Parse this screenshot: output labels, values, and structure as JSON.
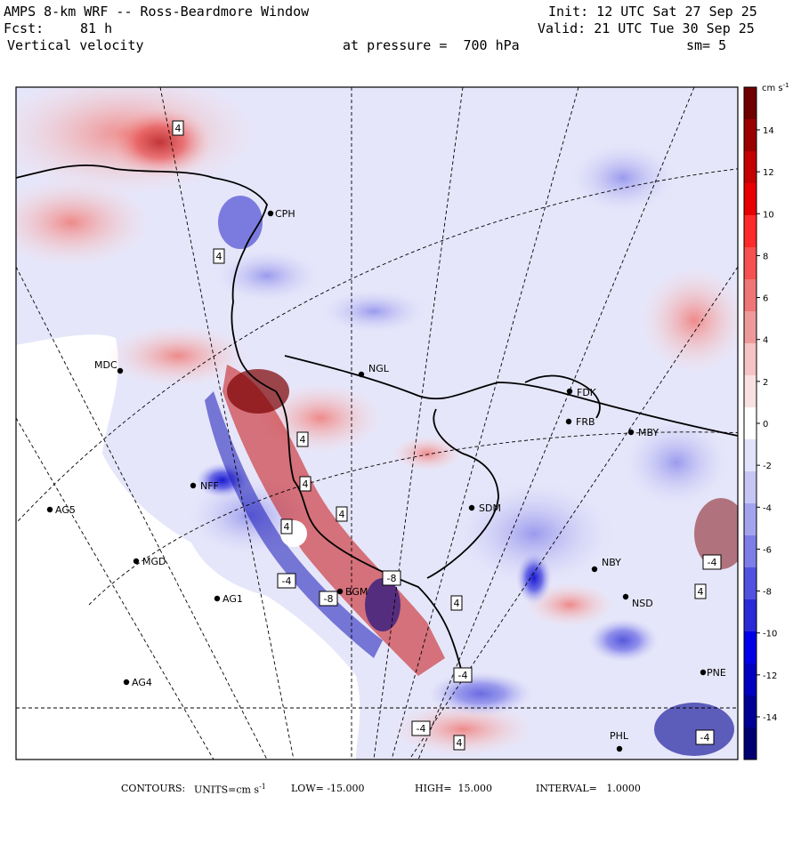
{
  "header": {
    "title": "AMPS 8-km WRF -- Ross-Beardmore Window",
    "forecast_label": "Fcst:",
    "forecast_value": "81 h",
    "field": "Vertical velocity",
    "init": "Init: 12 UTC Sat 27 Sep 25",
    "valid": "Valid: 21 UTC Tue 30 Sep 25",
    "pressure": "at pressure =  700 hPa",
    "smooth": "sm= 5"
  },
  "colorbar": {
    "unit_label": "cm s",
    "unit_sup": "-1",
    "ticks": [
      "14",
      "12",
      "10",
      "8",
      "6",
      "4",
      "2",
      "0",
      "-2",
      "-4",
      "-6",
      "-8",
      "-10",
      "-12",
      "-14"
    ],
    "colors": [
      "#6e0000",
      "#9a0000",
      "#c40000",
      "#e80000",
      "#ff2a2a",
      "#f65050",
      "#ee7676",
      "#ee9a9a",
      "#f5c3c3",
      "#fae1e1",
      "#ffffff",
      "#e2e2fa",
      "#c6c6f4",
      "#a4a4ee",
      "#7e7ee8",
      "#5252e0",
      "#2a2ad8",
      "#0000e8",
      "#0000c0",
      "#000096",
      "#000070"
    ]
  },
  "stations": [
    {
      "code": "CPH"
    },
    {
      "code": "MDC"
    },
    {
      "code": "NGL"
    },
    {
      "code": "FDK"
    },
    {
      "code": "FRB"
    },
    {
      "code": "MBY"
    },
    {
      "code": "SDM"
    },
    {
      "code": "NFF"
    },
    {
      "code": "AG5"
    },
    {
      "code": "MGD"
    },
    {
      "code": "AG1"
    },
    {
      "code": "BGM"
    },
    {
      "code": "NBY"
    },
    {
      "code": "NSD"
    },
    {
      "code": "AG4"
    },
    {
      "code": "PNE"
    },
    {
      "code": "PHL"
    }
  ],
  "contour_labels": [
    "4",
    "4",
    "4",
    "4",
    "4",
    "4",
    "-4",
    "-8",
    "-4",
    "-4",
    "4",
    "-4",
    "4",
    "-8",
    "-4",
    "4"
  ],
  "footer": {
    "contours": "CONTOURS:",
    "units_prefix": "UNITS=cm s",
    "units_sup": "-1",
    "low": "LOW= -15.000",
    "high": "HIGH=  15.000",
    "interval": "INTERVAL=   1.0000"
  }
}
